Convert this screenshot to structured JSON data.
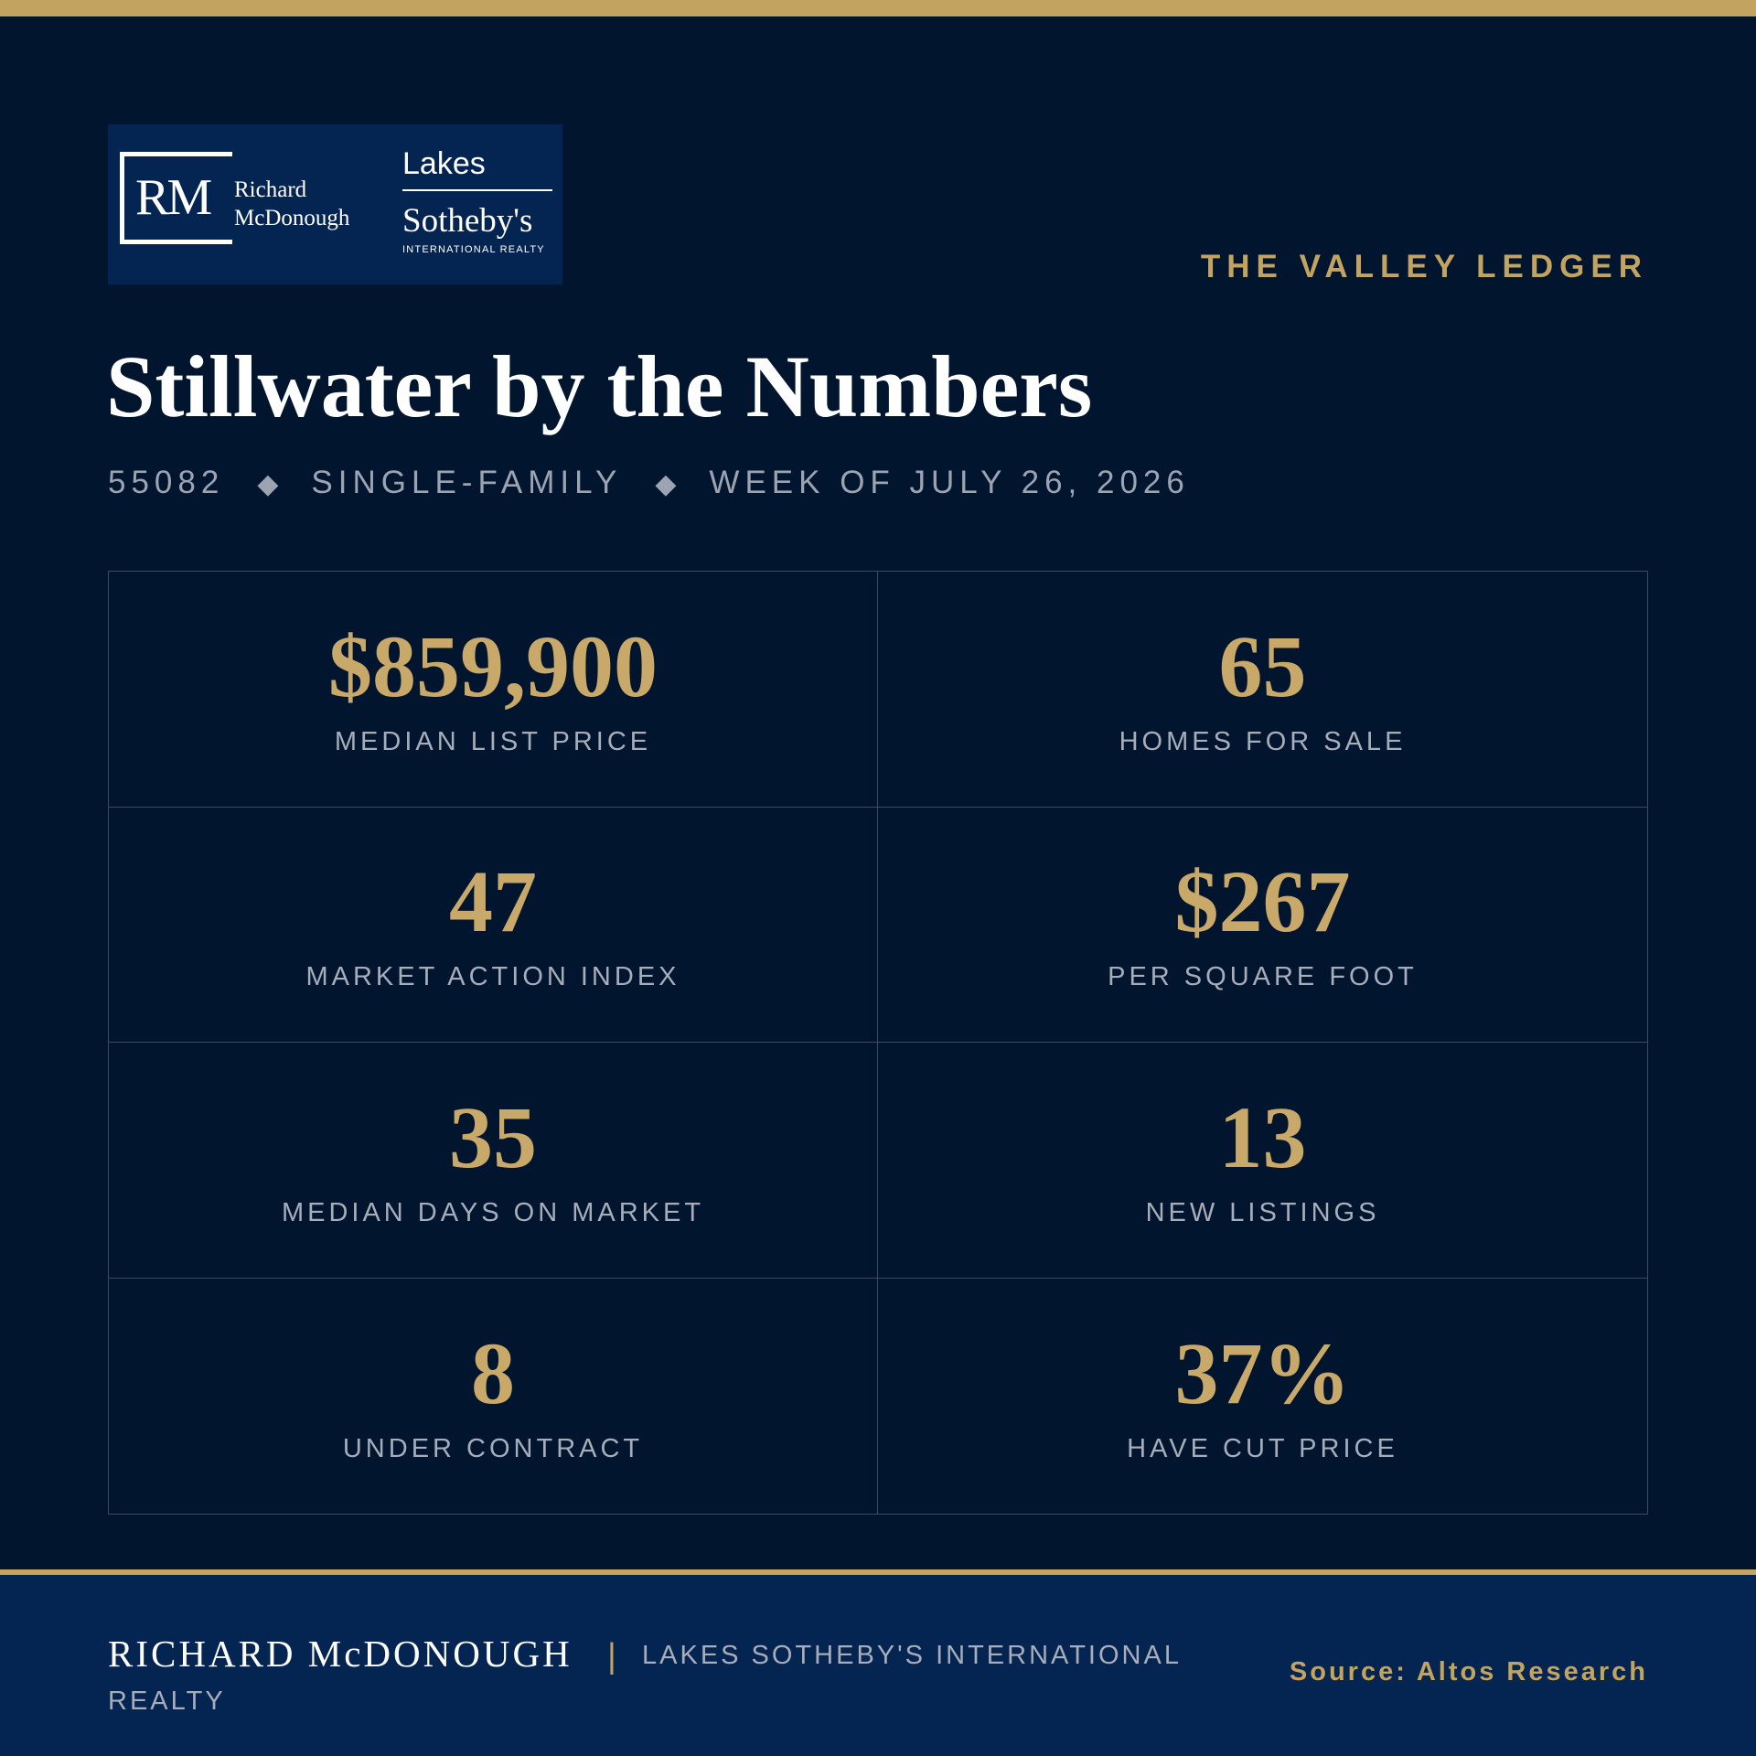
{
  "logo": {
    "rm_letters": "RM",
    "rm_name_line1": "Richard",
    "rm_name_line2": "McDonough",
    "lakes": "Lakes",
    "sothebys": "Sotheby's",
    "intl_realty": "INTERNATIONAL REALTY"
  },
  "masthead": "THE VALLEY LEDGER",
  "title": "Stillwater by the Numbers",
  "subtitle": {
    "zip": "55082",
    "property_type": "SINGLE-FAMILY",
    "week": "WEEK OF JULY 26, 2026",
    "separator": "◆"
  },
  "stats": [
    {
      "value": "$859,900",
      "label": "MEDIAN LIST PRICE"
    },
    {
      "value": "65",
      "label": "HOMES FOR SALE"
    },
    {
      "value": "47",
      "label": "MARKET ACTION INDEX"
    },
    {
      "value": "$267",
      "label": "PER SQUARE FOOT"
    },
    {
      "value": "35",
      "label": "MEDIAN DAYS ON MARKET"
    },
    {
      "value": "13",
      "label": "NEW LISTINGS"
    },
    {
      "value": "8",
      "label": "UNDER CONTRACT"
    },
    {
      "value": "37%",
      "label": "HAVE CUT PRICE"
    }
  ],
  "footer": {
    "agent_name": "RICHARD McDONOUGH",
    "divider": "|",
    "company_line1": "LAKES SOTHEBY'S INTERNATIONAL",
    "company_line2": "REALTY",
    "source": "Source: Altos Research"
  },
  "colors": {
    "background": "#01152f",
    "accent_gold": "#c2a460",
    "value_gold": "#c9a96a",
    "footer_navy": "#042451"
  }
}
